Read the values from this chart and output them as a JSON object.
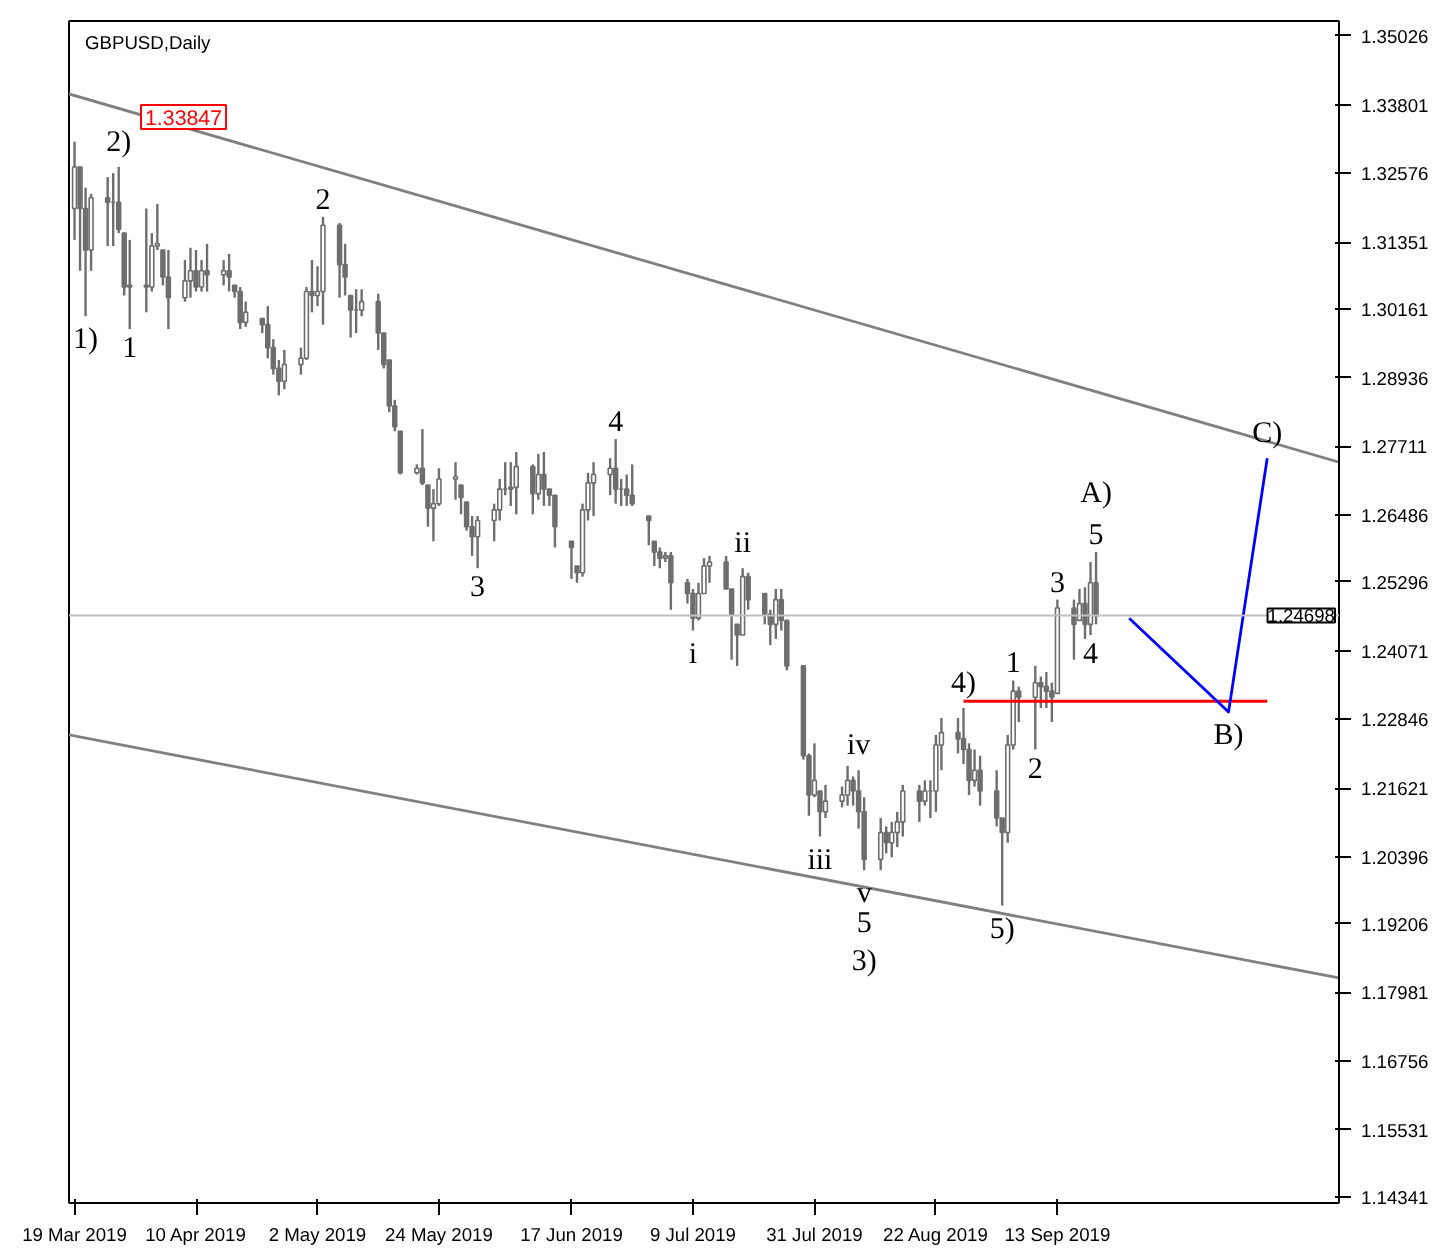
{
  "chart_data": {
    "type": "candlestick",
    "title": "GBPUSD,Daily",
    "color": "#6e6e6e",
    "x": [
      "2019-03-19",
      "2019-03-20",
      "2019-03-21",
      "2019-03-22",
      "2019-03-25",
      "2019-03-26",
      "2019-03-27",
      "2019-03-28",
      "2019-03-29",
      "2019-04-01",
      "2019-04-02",
      "2019-04-03",
      "2019-04-04",
      "2019-04-05",
      "2019-04-08",
      "2019-04-09",
      "2019-04-10",
      "2019-04-11",
      "2019-04-12",
      "2019-04-15",
      "2019-04-16",
      "2019-04-17",
      "2019-04-18",
      "2019-04-19",
      "2019-04-22",
      "2019-04-23",
      "2019-04-24",
      "2019-04-25",
      "2019-04-26",
      "2019-04-29",
      "2019-04-30",
      "2019-05-01",
      "2019-05-02",
      "2019-05-03",
      "2019-05-06",
      "2019-05-07",
      "2019-05-08",
      "2019-05-09",
      "2019-05-10",
      "2019-05-13",
      "2019-05-14",
      "2019-05-15",
      "2019-05-16",
      "2019-05-17",
      "2019-05-20",
      "2019-05-21",
      "2019-05-22",
      "2019-05-23",
      "2019-05-24",
      "2019-05-27",
      "2019-05-28",
      "2019-05-29",
      "2019-05-30",
      "2019-05-31",
      "2019-06-03",
      "2019-06-04",
      "2019-06-05",
      "2019-06-06",
      "2019-06-07",
      "2019-06-10",
      "2019-06-11",
      "2019-06-12",
      "2019-06-13",
      "2019-06-14",
      "2019-06-17",
      "2019-06-18",
      "2019-06-19",
      "2019-06-20",
      "2019-06-21",
      "2019-06-24",
      "2019-06-25",
      "2019-06-26",
      "2019-06-27",
      "2019-06-28",
      "2019-07-01",
      "2019-07-02",
      "2019-07-03",
      "2019-07-04",
      "2019-07-05",
      "2019-07-08",
      "2019-07-09",
      "2019-07-10",
      "2019-07-11",
      "2019-07-12",
      "2019-07-15",
      "2019-07-16",
      "2019-07-17",
      "2019-07-18",
      "2019-07-19",
      "2019-07-22",
      "2019-07-23",
      "2019-07-24",
      "2019-07-25",
      "2019-07-26",
      "2019-07-29",
      "2019-07-30",
      "2019-07-31",
      "2019-08-01",
      "2019-08-02",
      "2019-08-05",
      "2019-08-06",
      "2019-08-07",
      "2019-08-08",
      "2019-08-09",
      "2019-08-12",
      "2019-08-13",
      "2019-08-14",
      "2019-08-15",
      "2019-08-16",
      "2019-08-19",
      "2019-08-20",
      "2019-08-21",
      "2019-08-22",
      "2019-08-23",
      "2019-08-26",
      "2019-08-27",
      "2019-08-28",
      "2019-08-29",
      "2019-08-30",
      "2019-09-02",
      "2019-09-03",
      "2019-09-04",
      "2019-09-05",
      "2019-09-06",
      "2019-09-09",
      "2019-09-10",
      "2019-09-11",
      "2019-09-12",
      "2019-09-13",
      "2019-09-16",
      "2019-09-17",
      "2019-09-18",
      "2019-09-19",
      "2019-09-20"
    ],
    "ohlc": [
      [
        1.3195,
        1.3314,
        1.3139,
        1.3269
      ],
      [
        1.3269,
        1.3269,
        1.3084,
        1.3195
      ],
      [
        1.3195,
        1.3232,
        1.3003,
        1.3121
      ],
      [
        1.3121,
        1.3221,
        1.3084,
        1.3214
      ],
      [
        1.3214,
        1.3251,
        1.3128,
        1.3206
      ],
      [
        1.3206,
        1.3258,
        1.3128,
        1.3206
      ],
      [
        1.3206,
        1.3269,
        1.3151,
        1.3158
      ],
      [
        1.3151,
        1.3151,
        1.304,
        1.3055
      ],
      [
        1.3055,
        1.3139,
        1.298,
        1.3058
      ],
      [
        1.3058,
        1.3195,
        1.301,
        1.3055
      ],
      [
        1.3055,
        1.3151,
        1.3047,
        1.3128
      ],
      [
        1.3128,
        1.3203,
        1.3121,
        1.3132
      ],
      [
        1.3121,
        1.3121,
        1.3058,
        1.3073
      ],
      [
        1.3073,
        1.3121,
        1.298,
        1.3036
      ],
      [
        1.3036,
        1.3103,
        1.3029,
        1.3066
      ],
      [
        1.3066,
        1.3125,
        1.3036,
        1.3084
      ],
      [
        1.3084,
        1.3121,
        1.3047,
        1.3055
      ],
      [
        1.3055,
        1.3103,
        1.3047,
        1.3084
      ],
      [
        1.3084,
        1.3132,
        1.3047,
        1.3077
      ],
      [
        1.3077,
        1.3103,
        1.3058,
        1.3084
      ],
      [
        1.3084,
        1.3114,
        1.3047,
        1.3073
      ],
      [
        1.3058,
        1.3058,
        1.3036,
        1.3047
      ],
      [
        1.3047,
        1.3055,
        1.298,
        1.2992
      ],
      [
        1.2992,
        1.3029,
        1.2984,
        1.301
      ],
      [
        1.2999,
        1.2999,
        1.2973,
        1.2988
      ],
      [
        1.2988,
        1.3021,
        1.2928,
        1.2947
      ],
      [
        1.2947,
        1.2962,
        1.2899,
        1.291
      ],
      [
        1.291,
        1.2925,
        1.2862,
        1.2887
      ],
      [
        1.2887,
        1.2943,
        1.2873,
        1.2917
      ],
      [
        1.2917,
        1.2947,
        1.2899,
        1.2928
      ],
      [
        1.2928,
        1.3055,
        1.2925,
        1.3047
      ],
      [
        1.3047,
        1.3103,
        1.301,
        1.304
      ],
      [
        1.304,
        1.3092,
        1.3021,
        1.3047
      ],
      [
        1.3047,
        1.318,
        1.2988,
        1.3165
      ],
      [
        1.3165,
        1.3169,
        1.3036,
        1.3095
      ],
      [
        1.3095,
        1.3132,
        1.304,
        1.3073
      ],
      [
        1.304,
        1.304,
        1.2965,
        1.3014
      ],
      [
        1.3014,
        1.3051,
        1.2973,
        1.3014
      ],
      [
        1.3014,
        1.3051,
        1.3003,
        1.3029
      ],
      [
        1.3029,
        1.3043,
        1.2943,
        1.2973
      ],
      [
        1.2973,
        1.2973,
        1.291,
        1.2917
      ],
      [
        1.2925,
        1.2925,
        1.2832,
        1.2843
      ],
      [
        1.2843,
        1.2854,
        1.2798,
        1.2806
      ],
      [
        1.2798,
        1.2798,
        1.2721,
        1.2724
      ],
      [
        1.2724,
        1.2739,
        1.2721,
        1.2732
      ],
      [
        1.2732,
        1.2802,
        1.2702,
        1.2706
      ],
      [
        1.2702,
        1.2702,
        1.2628,
        1.2661
      ],
      [
        1.2661,
        1.2695,
        1.2602,
        1.2669
      ],
      [
        1.2669,
        1.2732,
        1.2665,
        1.2713
      ],
      [
        1.2713,
        1.2743,
        1.2676,
        1.2717
      ],
      [
        1.2702,
        1.2702,
        1.265,
        1.268
      ],
      [
        1.2672,
        1.2672,
        1.2621,
        1.2628
      ],
      [
        1.2628,
        1.2647,
        1.2576,
        1.261
      ],
      [
        1.261,
        1.2647,
        1.2554,
        1.2639
      ],
      [
        1.2639,
        1.2669,
        1.2602,
        1.2658
      ],
      [
        1.2658,
        1.2713,
        1.2639,
        1.2695
      ],
      [
        1.2695,
        1.2743,
        1.2684,
        1.2695
      ],
      [
        1.2695,
        1.2743,
        1.2665,
        1.2698
      ],
      [
        1.2698,
        1.2761,
        1.265,
        1.2735
      ],
      [
        1.2735,
        1.2739,
        1.265,
        1.2687
      ],
      [
        1.2687,
        1.2758,
        1.2676,
        1.2721
      ],
      [
        1.2721,
        1.2761,
        1.2665,
        1.2695
      ],
      [
        1.2695,
        1.2695,
        1.2665,
        1.2684
      ],
      [
        1.2684,
        1.2684,
        1.2591,
        1.2628
      ],
      [
        1.2602,
        1.2602,
        1.2535,
        1.2591
      ],
      [
        1.2558,
        1.2558,
        1.2528,
        1.2546
      ],
      [
        1.2546,
        1.2669,
        1.2539,
        1.2658
      ],
      [
        1.2658,
        1.2724,
        1.2639,
        1.2706
      ],
      [
        1.2706,
        1.2743,
        1.2647,
        1.2721
      ],
      [
        1.2721,
        1.275,
        1.2684,
        1.2732
      ],
      [
        1.2732,
        1.2784,
        1.2669,
        1.2695
      ],
      [
        1.2695,
        1.2713,
        1.2665,
        1.2695
      ],
      [
        1.2695,
        1.2721,
        1.2665,
        1.2684
      ],
      [
        1.2684,
        1.2739,
        1.2665,
        1.2669
      ],
      [
        1.2647,
        1.2647,
        1.2595,
        1.2639
      ],
      [
        1.2602,
        1.2602,
        1.2558,
        1.2583
      ],
      [
        1.2583,
        1.2591,
        1.2554,
        1.2572
      ],
      [
        1.2572,
        1.2583,
        1.2565,
        1.2576
      ],
      [
        1.2576,
        1.2583,
        1.248,
        1.2528
      ],
      [
        1.2528,
        1.2535,
        1.2491,
        1.2509
      ],
      [
        1.2509,
        1.2517,
        1.2443,
        1.2465
      ],
      [
        1.2465,
        1.2528,
        1.2461,
        1.2509
      ],
      [
        1.2509,
        1.2572,
        1.2509,
        1.2558
      ],
      [
        1.2558,
        1.2576,
        1.2528,
        1.2565
      ],
      [
        1.2565,
        1.2576,
        1.2517,
        1.2517
      ],
      [
        1.2517,
        1.2517,
        1.2391,
        1.2472
      ],
      [
        1.2454,
        1.2454,
        1.238,
        1.2435
      ],
      [
        1.2435,
        1.2554,
        1.2435,
        1.2539
      ],
      [
        1.2539,
        1.2546,
        1.248,
        1.2498
      ],
      [
        1.2509,
        1.2509,
        1.2454,
        1.2472
      ],
      [
        1.2472,
        1.248,
        1.2417,
        1.2454
      ],
      [
        1.2454,
        1.2517,
        1.2428,
        1.2498
      ],
      [
        1.2498,
        1.2517,
        1.2443,
        1.2461
      ],
      [
        1.2461,
        1.2461,
        1.2372,
        1.238
      ],
      [
        1.238,
        1.238,
        1.2213,
        1.222
      ],
      [
        1.222,
        1.2224,
        1.2113,
        1.215
      ],
      [
        1.215,
        1.2242,
        1.2146,
        1.2176
      ],
      [
        1.2157,
        1.2157,
        1.2076,
        1.212
      ],
      [
        1.212,
        1.2168,
        1.2109,
        1.2139
      ],
      [
        1.2139,
        1.2165,
        1.2128,
        1.215
      ],
      [
        1.215,
        1.2202,
        1.2131,
        1.2176
      ],
      [
        1.2176,
        1.2183,
        1.2131,
        1.2157
      ],
      [
        1.2157,
        1.2194,
        1.209,
        1.212
      ],
      [
        1.212,
        1.2146,
        1.2016,
        1.2035
      ],
      [
        1.2035,
        1.2109,
        1.2016,
        1.2083
      ],
      [
        1.2083,
        1.2094,
        1.2046,
        1.2065
      ],
      [
        1.2065,
        1.2102,
        1.2039,
        1.2083
      ],
      [
        1.2083,
        1.212,
        1.2057,
        1.2102
      ],
      [
        1.2102,
        1.2168,
        1.2076,
        1.2157
      ],
      [
        1.2157,
        1.2168,
        1.2102,
        1.2139
      ],
      [
        1.2139,
        1.2176,
        1.2131,
        1.2157
      ],
      [
        1.2157,
        1.2176,
        1.2109,
        1.2157
      ],
      [
        1.2157,
        1.2257,
        1.212,
        1.2239
      ],
      [
        1.2239,
        1.2287,
        1.2194,
        1.2261
      ],
      [
        1.2261,
        1.2287,
        1.2224,
        1.225
      ],
      [
        1.225,
        1.2305,
        1.2205,
        1.2231
      ],
      [
        1.2231,
        1.2242,
        1.215,
        1.2176
      ],
      [
        1.2176,
        1.2231,
        1.2165,
        1.2194
      ],
      [
        1.2194,
        1.222,
        1.2131,
        1.2157
      ],
      [
        1.2157,
        1.2194,
        1.2094,
        1.2109
      ],
      [
        1.2109,
        1.2109,
        1.1953,
        1.2083
      ],
      [
        1.2083,
        1.2257,
        1.2065,
        1.2239
      ],
      [
        1.2239,
        1.2354,
        1.2231,
        1.2335
      ],
      [
        1.2335,
        1.2343,
        1.228,
        1.2324
      ],
      [
        1.2324,
        1.238,
        1.2231,
        1.235
      ],
      [
        1.235,
        1.2361,
        1.2305,
        1.2343
      ],
      [
        1.2343,
        1.2369,
        1.2305,
        1.2335
      ],
      [
        1.2335,
        1.235,
        1.228,
        1.2324
      ],
      [
        1.2331,
        1.2498,
        1.2331,
        1.2483
      ],
      [
        1.2483,
        1.2498,
        1.2391,
        1.2454
      ],
      [
        1.2461,
        1.2517,
        1.2461,
        1.2491
      ],
      [
        1.2491,
        1.252,
        1.2428,
        1.2454
      ],
      [
        1.2454,
        1.2565,
        1.2435,
        1.2528
      ],
      [
        1.2528,
        1.2583,
        1.2454,
        1.2469
      ]
    ],
    "series": [
      {
        "type": "line",
        "color": "#808080",
        "x": [
          "2019-03-18",
          "2019-11-03"
        ],
        "values": [
          1.3399,
          1.2743
        ]
      },
      {
        "type": "line",
        "color": "#808080",
        "x": [
          "2019-03-18",
          "2019-11-03"
        ],
        "values": [
          1.2257,
          1.1824
        ]
      },
      {
        "type": "line",
        "color": "#ff0000",
        "x": [
          "2019-08-27",
          "2019-10-21"
        ],
        "values": [
          1.2317,
          1.2317
        ]
      },
      {
        "type": "line",
        "color": "#0000ff",
        "x": [
          "2019-09-26",
          "2019-10-14",
          "2019-10-21"
        ],
        "values": [
          1.2465,
          1.2298,
          1.275
        ]
      }
    ],
    "ref_lines": [
      {
        "axis": "y",
        "value": 1.24698,
        "label": "1.24698",
        "color": "#c0c0c0"
      }
    ],
    "annotations": [
      "1.33847",
      {
        "text": "1)",
        "x": "2019-03-21",
        "y": 1.3003
      },
      {
        "text": "2)",
        "x": "2019-03-27",
        "y": 1.3269
      },
      {
        "text": "1",
        "x": "2019-03-29",
        "y": 1.298
      },
      {
        "text": "2",
        "x": "2019-05-03",
        "y": 1.318
      },
      {
        "text": "3",
        "x": "2019-05-31",
        "y": 1.2554
      },
      {
        "text": "4",
        "x": "2019-06-25",
        "y": 1.2784
      },
      {
        "text": "i",
        "x": "2019-07-09",
        "y": 1.2443
      },
      {
        "text": "ii",
        "x": "2019-07-18",
        "y": 1.2554
      },
      {
        "text": "iii",
        "x": "2019-08-01",
        "y": 1.2076
      },
      {
        "text": "iv",
        "x": "2019-08-08",
        "y": 1.2194
      },
      {
        "text": "v",
        "x": "2019-08-09",
        "y": 1.2016
      },
      {
        "text": "5",
        "x": "2019-08-09",
        "y": 1.2016
      },
      {
        "text": "3)",
        "x": "2019-08-09",
        "y": 1.2016
      },
      {
        "text": "4)",
        "x": "2019-08-27",
        "y": 1.2305
      },
      {
        "text": "5)",
        "x": "2019-09-03",
        "y": 1.1953
      },
      {
        "text": "1",
        "x": "2019-09-05",
        "y": 1.2354
      },
      {
        "text": "2",
        "x": "2019-09-09",
        "y": 1.2231
      },
      {
        "text": "3",
        "x": "2019-09-13",
        "y": 1.2498
      },
      {
        "text": "4",
        "x": "2019-09-19",
        "y": 1.2435
      },
      {
        "text": "5",
        "x": "2019-09-20",
        "y": 1.2583
      },
      {
        "text": "A)",
        "x": "2019-09-20",
        "y": 1.2583
      },
      {
        "text": "B)",
        "x": "2019-10-14",
        "y": 1.2298
      },
      {
        "text": "C)",
        "x": "2019-10-21",
        "y": 1.275
      }
    ],
    "xlim": [
      "2019-03-18",
      "2019-11-03"
    ],
    "xticks": [
      {
        "value": "2019-03-19",
        "label": "19 Mar 2019"
      },
      {
        "value": "2019-04-10",
        "label": "10 Apr 2019"
      },
      {
        "value": "2019-05-02",
        "label": "2 May 2019"
      },
      {
        "value": "2019-05-24",
        "label": "24 May 2019"
      },
      {
        "value": "2019-06-17",
        "label": "17 Jun 2019"
      },
      {
        "value": "2019-07-09",
        "label": "9 Jul 2019"
      },
      {
        "value": "2019-07-31",
        "label": "31 Jul 2019"
      },
      {
        "value": "2019-08-22",
        "label": "22 Aug 2019"
      },
      {
        "value": "2019-09-13",
        "label": "13 Sep 2019"
      }
    ],
    "ylim": [
      1.1423,
      1.3529
    ],
    "yticks": [
      1.35026,
      1.33801,
      1.32576,
      1.31351,
      1.30161,
      1.28936,
      1.27711,
      1.26486,
      1.25296,
      1.24071,
      1.22846,
      1.21621,
      1.20396,
      1.19206,
      1.17981,
      1.16756,
      1.15531,
      1.14341
    ]
  }
}
